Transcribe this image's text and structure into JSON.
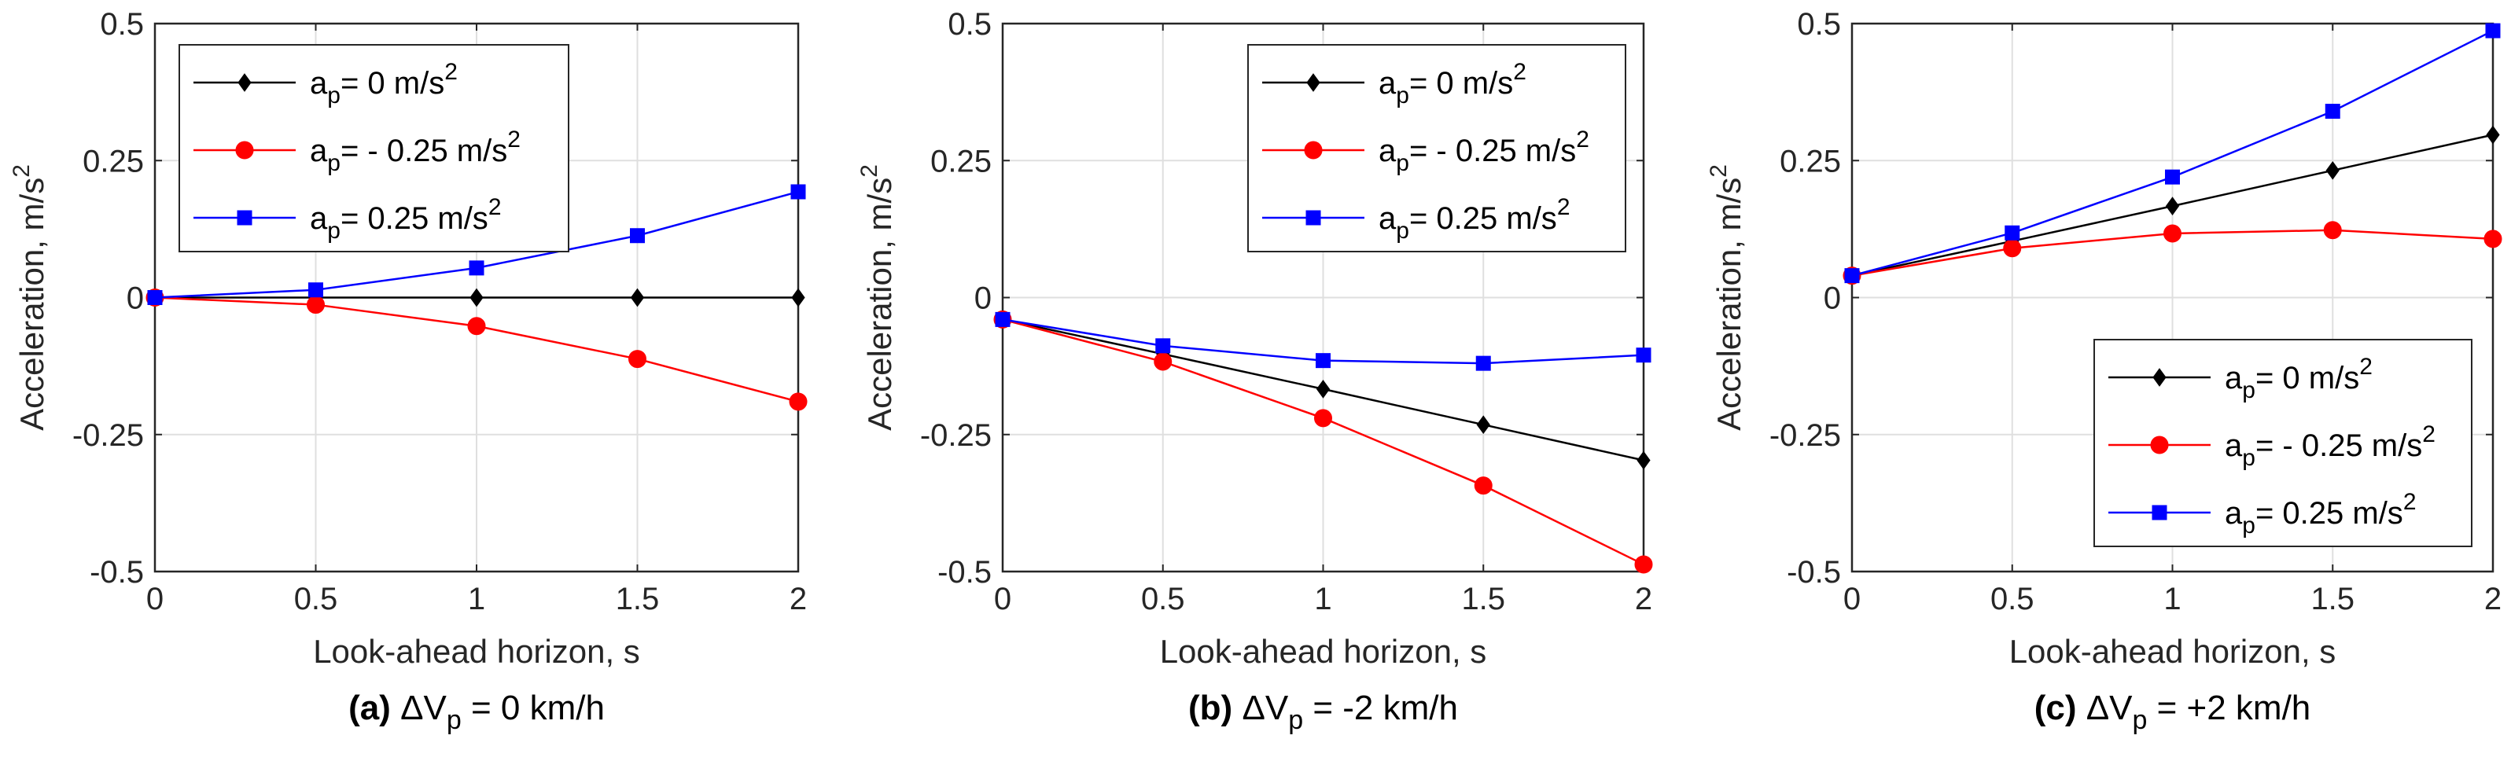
{
  "chart_data": [
    {
      "type": "line",
      "caption": {
        "tag": "(a)",
        "delta": "Δ",
        "var": "V",
        "sub": "p",
        "rest": " = 0 km/h"
      },
      "xlabel": "Look-ahead horizon, s",
      "ylabel": {
        "main": "Acceleration, m/s",
        "sup": "2"
      },
      "xlim": [
        0,
        2
      ],
      "ylim": [
        -0.5,
        0.5
      ],
      "xticks": [
        "0",
        "0.5",
        "1",
        "1.5",
        "2"
      ],
      "yticks": [
        "-0.5",
        "-0.25",
        "0",
        "0.25",
        "0.5"
      ],
      "legend_position": "top-left",
      "x": [
        0,
        0.5,
        1,
        1.5,
        2
      ],
      "series": [
        {
          "name": "a_p = 0 m/s^2",
          "label": {
            "a": "a",
            "sub": "p",
            "val": "= 0 m/s",
            "sup": "2"
          },
          "color": "#000000",
          "marker": "diamond",
          "values": [
            0,
            0,
            0,
            0,
            0
          ]
        },
        {
          "name": "a_p = - 0.25 m/s^2",
          "label": {
            "a": "a",
            "sub": "p",
            "val": "= - 0.25 m/s",
            "sup": "2"
          },
          "color": "#ff0000",
          "marker": "circle",
          "values": [
            0,
            -0.013,
            -0.052,
            -0.112,
            -0.19
          ]
        },
        {
          "name": "a_p = 0.25 m/s^2",
          "label": {
            "a": "a",
            "sub": "p",
            "val": "= 0.25 m/s",
            "sup": "2"
          },
          "color": "#0000ff",
          "marker": "square",
          "values": [
            0,
            0.014,
            0.054,
            0.113,
            0.193
          ]
        }
      ]
    },
    {
      "type": "line",
      "caption": {
        "tag": "(b)",
        "delta": "Δ",
        "var": "V",
        "sub": "p",
        "rest": " = -2 km/h"
      },
      "xlabel": "Look-ahead horizon, s",
      "ylabel": {
        "main": "Acceleration, m/s",
        "sup": "2"
      },
      "xlim": [
        0,
        2
      ],
      "ylim": [
        -0.5,
        0.5
      ],
      "xticks": [
        "0",
        "0.5",
        "1",
        "1.5",
        "2"
      ],
      "yticks": [
        "-0.5",
        "-0.25",
        "0",
        "0.25",
        "0.5"
      ],
      "legend_position": "top-right",
      "x": [
        0,
        0.5,
        1,
        1.5,
        2
      ],
      "series": [
        {
          "name": "a_p = 0 m/s^2",
          "label": {
            "a": "a",
            "sub": "p",
            "val": "= 0 m/s",
            "sup": "2"
          },
          "color": "#000000",
          "marker": "diamond",
          "values": [
            -0.04,
            -0.103,
            -0.167,
            -0.232,
            -0.297
          ]
        },
        {
          "name": "a_p = - 0.25 m/s^2",
          "label": {
            "a": "a",
            "sub": "p",
            "val": "= - 0.25 m/s",
            "sup": "2"
          },
          "color": "#ff0000",
          "marker": "circle",
          "values": [
            -0.04,
            -0.117,
            -0.22,
            -0.343,
            -0.487
          ]
        },
        {
          "name": "a_p = 0.25 m/s^2",
          "label": {
            "a": "a",
            "sub": "p",
            "val": "= 0.25 m/s",
            "sup": "2"
          },
          "color": "#0000ff",
          "marker": "square",
          "values": [
            -0.04,
            -0.088,
            -0.115,
            -0.12,
            -0.105
          ]
        }
      ]
    },
    {
      "type": "line",
      "caption": {
        "tag": "(c)",
        "delta": "Δ",
        "var": "V",
        "sub": "p",
        "rest": " = +2 km/h"
      },
      "xlabel": "Look-ahead horizon, s",
      "ylabel": {
        "main": "Acceleration, m/s",
        "sup": "2"
      },
      "xlim": [
        0,
        2
      ],
      "ylim": [
        -0.5,
        0.5
      ],
      "xticks": [
        "0",
        "0.5",
        "1",
        "1.5",
        "2"
      ],
      "yticks": [
        "-0.5",
        "-0.25",
        "0",
        "0.25",
        "0.5"
      ],
      "legend_position": "bottom-right",
      "x": [
        0,
        0.5,
        1,
        1.5,
        2
      ],
      "series": [
        {
          "name": "a_p = 0 m/s^2",
          "label": {
            "a": "a",
            "sub": "p",
            "val": "= 0 m/s",
            "sup": "2"
          },
          "color": "#000000",
          "marker": "diamond",
          "values": [
            0.04,
            0.103,
            0.167,
            0.232,
            0.297
          ]
        },
        {
          "name": "a_p = - 0.25 m/s^2",
          "label": {
            "a": "a",
            "sub": "p",
            "val": "= - 0.25 m/s",
            "sup": "2"
          },
          "color": "#ff0000",
          "marker": "circle",
          "values": [
            0.04,
            0.09,
            0.117,
            0.123,
            0.107
          ]
        },
        {
          "name": "a_p = 0.25 m/s^2",
          "label": {
            "a": "a",
            "sub": "p",
            "val": "= 0.25 m/s",
            "sup": "2"
          },
          "color": "#0000ff",
          "marker": "square",
          "values": [
            0.04,
            0.118,
            0.22,
            0.34,
            0.487
          ]
        }
      ]
    }
  ]
}
